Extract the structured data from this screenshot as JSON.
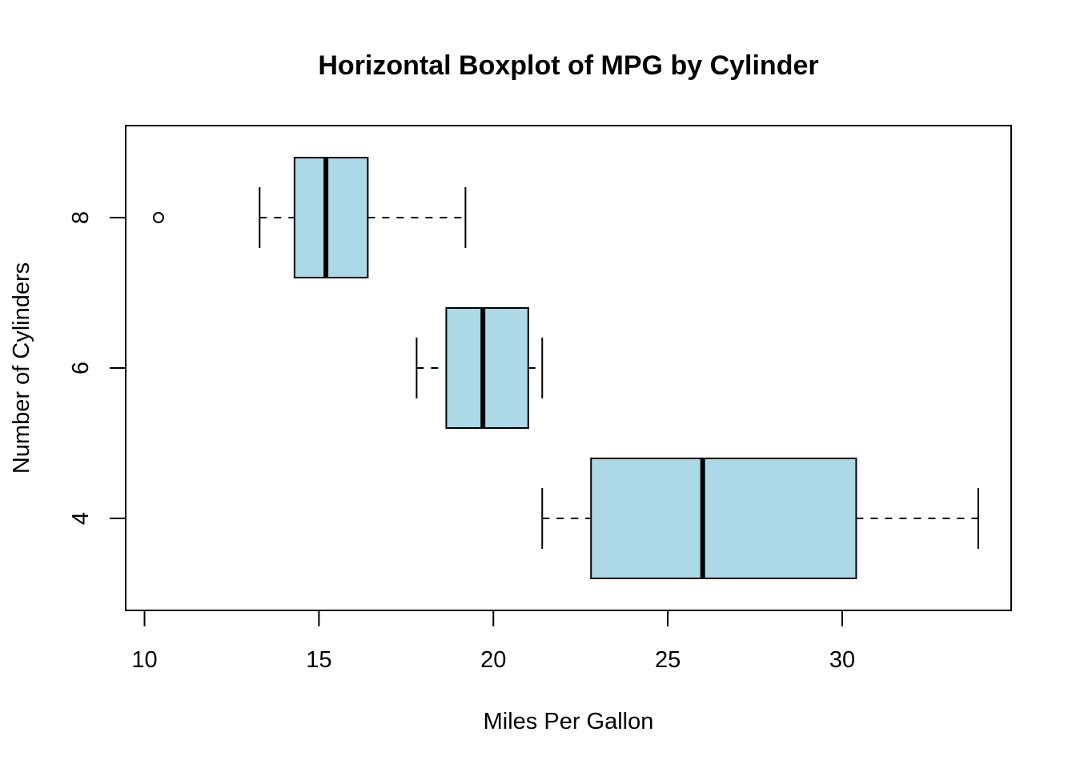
{
  "chart_data": {
    "type": "boxplot",
    "orientation": "horizontal",
    "title": "Horizontal Boxplot of MPG by Cylinder",
    "xlabel": "Miles Per Gallon",
    "ylabel": "Number of Cylinders",
    "xlim": [
      9.5,
      34.9
    ],
    "x_ticks": [
      10,
      15,
      20,
      25,
      30
    ],
    "x_tick_labels": [
      "10",
      "15",
      "20",
      "25",
      "30"
    ],
    "box_color": "#add8e6",
    "grid": false,
    "groups": [
      {
        "label": "4",
        "whisker_low": 21.4,
        "q1": 22.8,
        "median": 26.0,
        "q3": 30.4,
        "whisker_high": 33.9,
        "outliers": []
      },
      {
        "label": "6",
        "whisker_low": 17.8,
        "q1": 18.65,
        "median": 19.7,
        "q3": 21.0,
        "whisker_high": 21.4,
        "outliers": []
      },
      {
        "label": "8",
        "whisker_low": 13.3,
        "q1": 14.3,
        "median": 15.2,
        "q3": 16.4,
        "whisker_high": 19.2,
        "outliers": [
          10.4
        ]
      }
    ]
  }
}
